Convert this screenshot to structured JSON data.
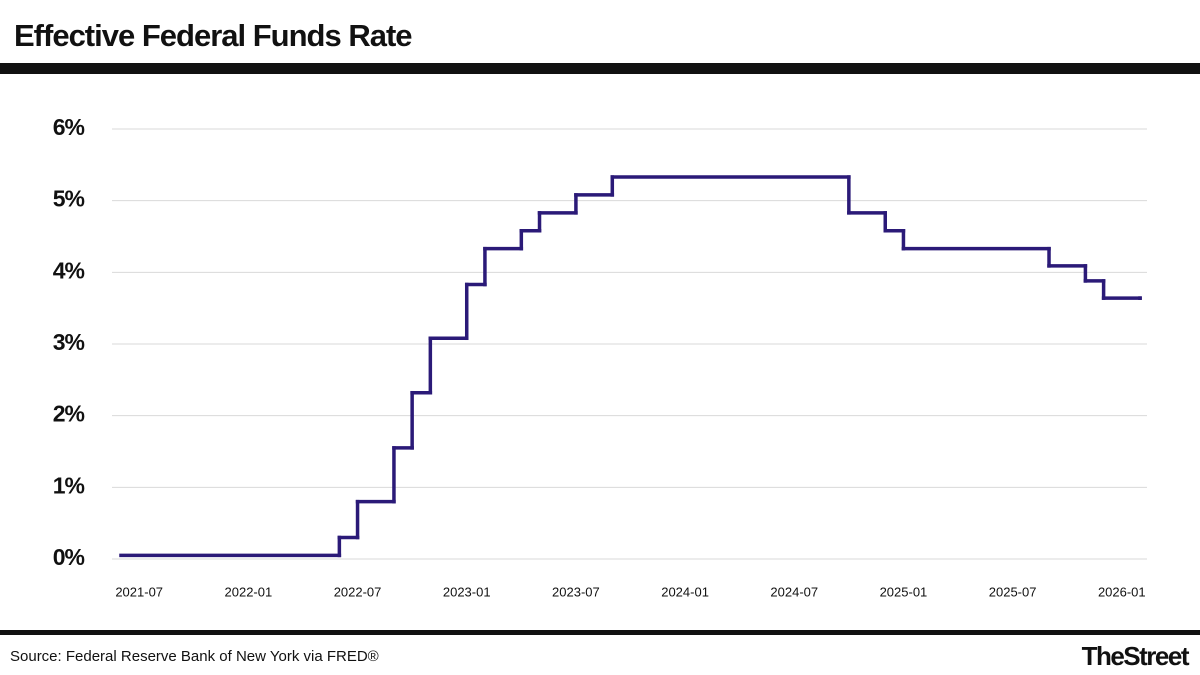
{
  "chart_data": {
    "type": "line",
    "step": true,
    "title": "Effective Federal Funds Rate",
    "x": [
      "2021-06",
      "2022-06",
      "2022-07",
      "2022-09",
      "2022-10",
      "2022-11",
      "2023-01",
      "2023-02",
      "2023-04",
      "2023-05",
      "2023-07",
      "2023-09",
      "2024-10",
      "2024-12",
      "2025-01",
      "2025-09",
      "2025-11",
      "2025-12",
      "2026-02"
    ],
    "series": [
      {
        "name": "Effective Federal Funds Rate",
        "color": "#2b1a78",
        "values": [
          0.05,
          0.3,
          0.8,
          1.55,
          2.32,
          3.08,
          3.83,
          4.33,
          4.58,
          4.83,
          5.08,
          5.33,
          4.83,
          4.58,
          4.33,
          4.09,
          3.88,
          3.64,
          3.64
        ]
      }
    ],
    "xlim": [
      "2021-06",
      "2026-02"
    ],
    "xticks": [
      "2021-07",
      "2022-01",
      "2022-07",
      "2023-01",
      "2023-07",
      "2024-01",
      "2024-07",
      "2025-01",
      "2025-07",
      "2026-01"
    ],
    "ylim": [
      0,
      6
    ],
    "yticks": [
      {
        "value": 0,
        "label": "0%"
      },
      {
        "value": 1,
        "label": "1%"
      },
      {
        "value": 2,
        "label": "2%"
      },
      {
        "value": 3,
        "label": "3%"
      },
      {
        "value": 4,
        "label": "4%"
      },
      {
        "value": 5,
        "label": "5%"
      },
      {
        "value": 6,
        "label": "6%"
      }
    ],
    "grid": true
  },
  "footer": {
    "source": "Source: Federal Reserve Bank of New York via FRED®",
    "brand": "TheStreet"
  }
}
